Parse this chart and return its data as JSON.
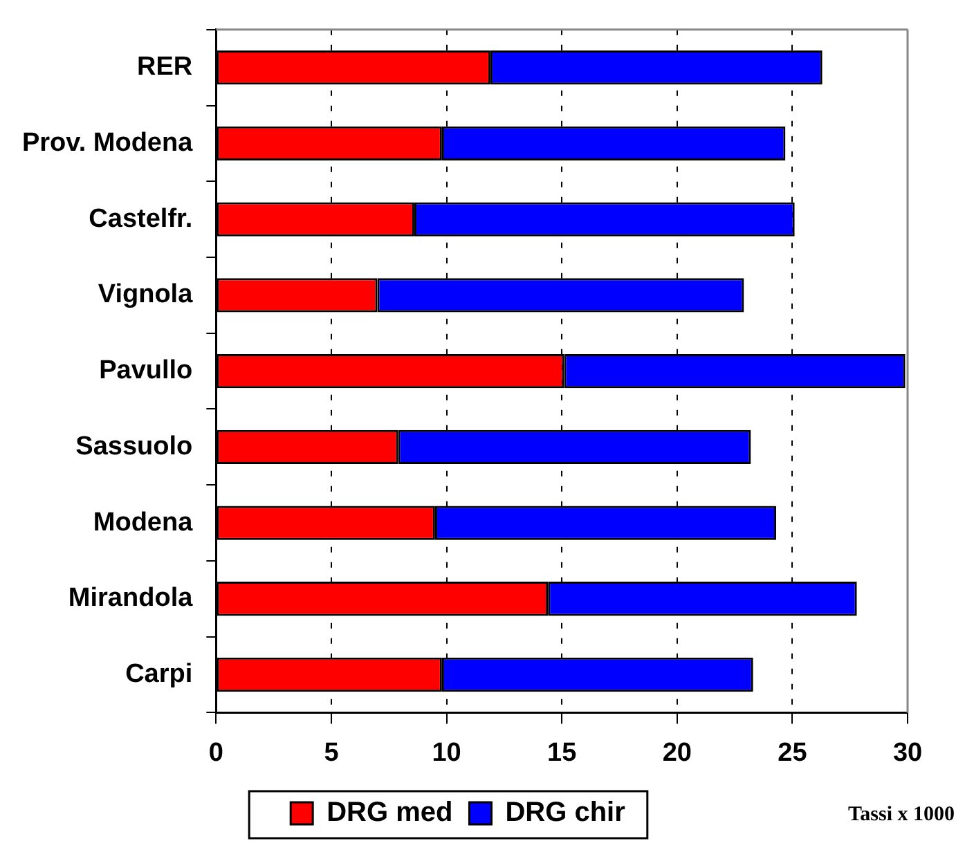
{
  "chart_data": {
    "type": "bar",
    "orientation": "horizontal",
    "stacked": true,
    "categories": [
      "RER",
      "Prov. Modena",
      "Castelfr.",
      "Vignola",
      "Pavullo",
      "Sassuolo",
      "Modena",
      "Mirandola",
      "Carpi"
    ],
    "series": [
      {
        "name": "DRG med",
        "color": "#ff0000",
        "values": [
          11.9,
          9.8,
          8.6,
          7.0,
          15.1,
          7.9,
          9.5,
          14.4,
          9.8
        ]
      },
      {
        "name": "DRG chir",
        "color": "#0000ff",
        "values": [
          14.4,
          14.9,
          16.5,
          15.9,
          14.8,
          15.3,
          14.8,
          13.4,
          13.5
        ]
      }
    ],
    "xlim": [
      0,
      30
    ],
    "xticks": [
      0,
      5,
      10,
      15,
      20,
      25,
      30
    ],
    "grid": "x",
    "legend": "bottom",
    "annotations": [
      "Tassi x 1000"
    ]
  }
}
